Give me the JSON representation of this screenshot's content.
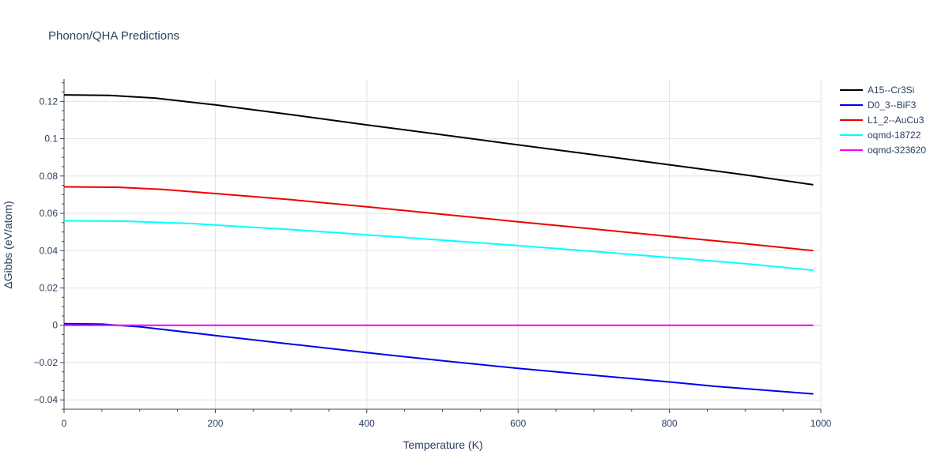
{
  "chart_data": {
    "type": "line",
    "title": "Phonon/QHA Predictions",
    "xlabel": "Temperature (K)",
    "ylabel": "ΔGibbs (eV/atom)",
    "xlim": [
      0,
      1000
    ],
    "ylim": [
      -0.045,
      0.132
    ],
    "xticks": [
      0,
      200,
      400,
      600,
      800,
      1000
    ],
    "xtick_labels": [
      "0",
      "200",
      "400",
      "600",
      "800",
      "1000"
    ],
    "yticks": [
      -0.04,
      -0.02,
      0,
      0.02,
      0.04,
      0.06,
      0.08,
      0.1,
      0.12
    ],
    "ytick_labels": [
      "−0.04",
      "−0.02",
      "0",
      "0.02",
      "0.04",
      "0.06",
      "0.08",
      "0.1",
      "0.12"
    ],
    "grid": true,
    "legend_position": "right",
    "series": [
      {
        "name": "A15--Cr3Si",
        "color": "#000000",
        "x": [
          0,
          60,
          120,
          200,
          300,
          400,
          500,
          600,
          700,
          800,
          900,
          990
        ],
        "y": [
          0.1235,
          0.1232,
          0.1218,
          0.1181,
          0.1129,
          0.1074,
          0.1021,
          0.0967,
          0.0914,
          0.086,
          0.0806,
          0.0753
        ]
      },
      {
        "name": "D0_3--BiF3",
        "color": "#0000ee",
        "x": [
          0,
          50,
          70,
          100,
          200,
          300,
          400,
          500,
          600,
          700,
          800,
          860,
          990
        ],
        "y": [
          0.0008,
          0.0006,
          0.0,
          -0.0008,
          -0.0055,
          -0.0101,
          -0.0147,
          -0.019,
          -0.0231,
          -0.0268,
          -0.0304,
          -0.0327,
          -0.0368
        ]
      },
      {
        "name": "L1_2--AuCu3",
        "color": "#ee0000",
        "x": [
          0,
          70,
          130,
          200,
          300,
          400,
          500,
          600,
          700,
          800,
          900,
          990
        ],
        "y": [
          0.0742,
          0.074,
          0.0728,
          0.0706,
          0.0673,
          0.0635,
          0.0595,
          0.0555,
          0.0516,
          0.0476,
          0.0437,
          0.04
        ]
      },
      {
        "name": "oqmd-18722",
        "color": "#00ffff",
        "x": [
          0,
          80,
          170,
          200,
          300,
          400,
          500,
          600,
          700,
          800,
          900,
          990
        ],
        "y": [
          0.056,
          0.0558,
          0.0545,
          0.0537,
          0.0513,
          0.0485,
          0.0456,
          0.0427,
          0.0396,
          0.0363,
          0.033,
          0.0295
        ]
      },
      {
        "name": "oqmd-323620",
        "color": "#ff00ff",
        "x": [
          0,
          990
        ],
        "y": [
          0.0,
          0.0
        ]
      }
    ]
  }
}
